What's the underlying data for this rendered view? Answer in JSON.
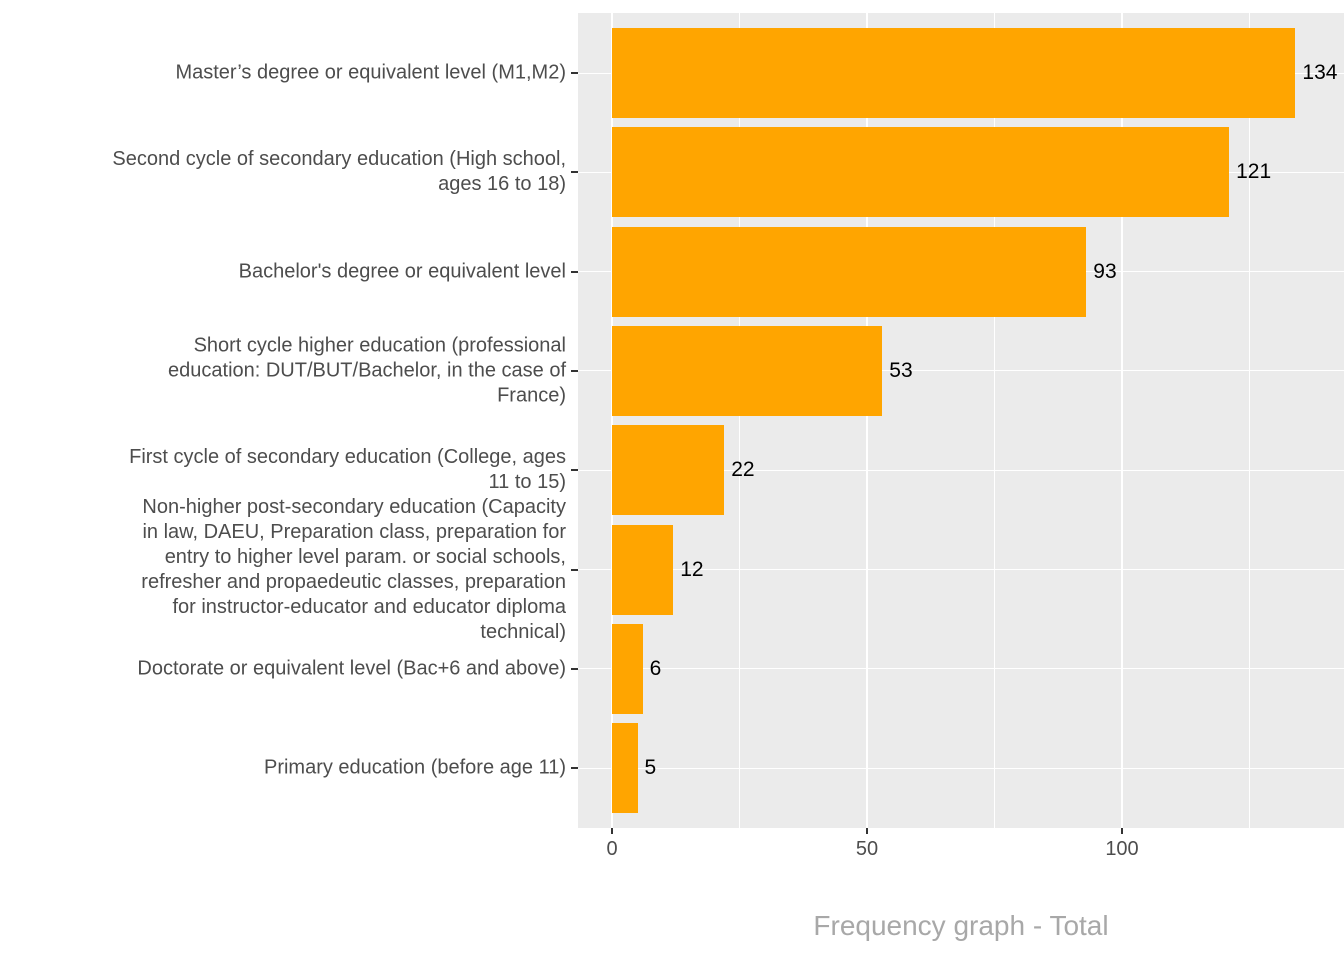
{
  "chart_data": {
    "type": "bar",
    "orientation": "horizontal",
    "title": "",
    "xlabel": "Frequency graph - Total",
    "ylabel": "",
    "categories": [
      "Master’s degree or equivalent level (M1,M2)",
      "Second cycle of secondary education (High school,\nages 16 to 18)",
      "Bachelor's degree or equivalent level",
      "Short cycle higher education (professional\neducation: DUT/BUT/Bachelor, in the case of\nFrance)",
      "First cycle of secondary education (College, ages\n11 to 15)",
      "Non-higher post-secondary education (Capacity\nin law, DAEU, Preparation class, preparation for\nentry to higher level param. or social schools,\nrefresher and propaedeutic classes, preparation\nfor instructor-educator and educator diploma\ntechnical)",
      "Doctorate or equivalent level (Bac+6 and above)",
      "Primary education (before age 11)"
    ],
    "values": [
      134,
      121,
      93,
      53,
      22,
      12,
      6,
      5
    ],
    "bar_labels": [
      "134",
      "121",
      "93",
      "53",
      "22",
      "12",
      "6",
      "5"
    ],
    "x_ticks": [
      0,
      50,
      100
    ],
    "x_tick_labels": [
      "0",
      "50",
      "100"
    ],
    "x_minor_ticks": [
      25,
      75,
      125
    ],
    "xlim": [
      -6.7,
      143.5
    ],
    "grid": "major and minor vertical, major horizontal per category",
    "legend_position": "none",
    "colors": {
      "bar_fill": "#FFA500",
      "panel_background": "#EBEBEB",
      "gridline": "#FFFFFF",
      "axis_text": "#4D4D4D",
      "value_label": "#000000",
      "axis_title": "#A8A8A8",
      "tick_mark": "#333333",
      "page_background": "#FFFFFF"
    }
  }
}
